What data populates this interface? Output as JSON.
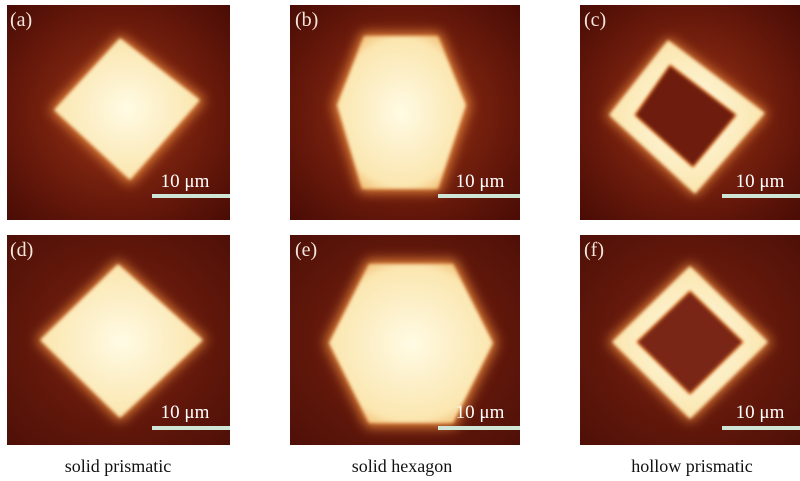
{
  "panels": [
    {
      "label": "(a)",
      "scale_bar": "10 μm"
    },
    {
      "label": "(b)",
      "scale_bar": "10 μm"
    },
    {
      "label": "(c)",
      "scale_bar": "10 μm"
    },
    {
      "label": "(d)",
      "scale_bar": "10 μm"
    },
    {
      "label": "(e)",
      "scale_bar": "10 μm"
    },
    {
      "label": "(f)",
      "scale_bar": "10 μm"
    }
  ],
  "captions": [
    "solid prismatic",
    "solid hexagon",
    "hollow prismatic"
  ]
}
